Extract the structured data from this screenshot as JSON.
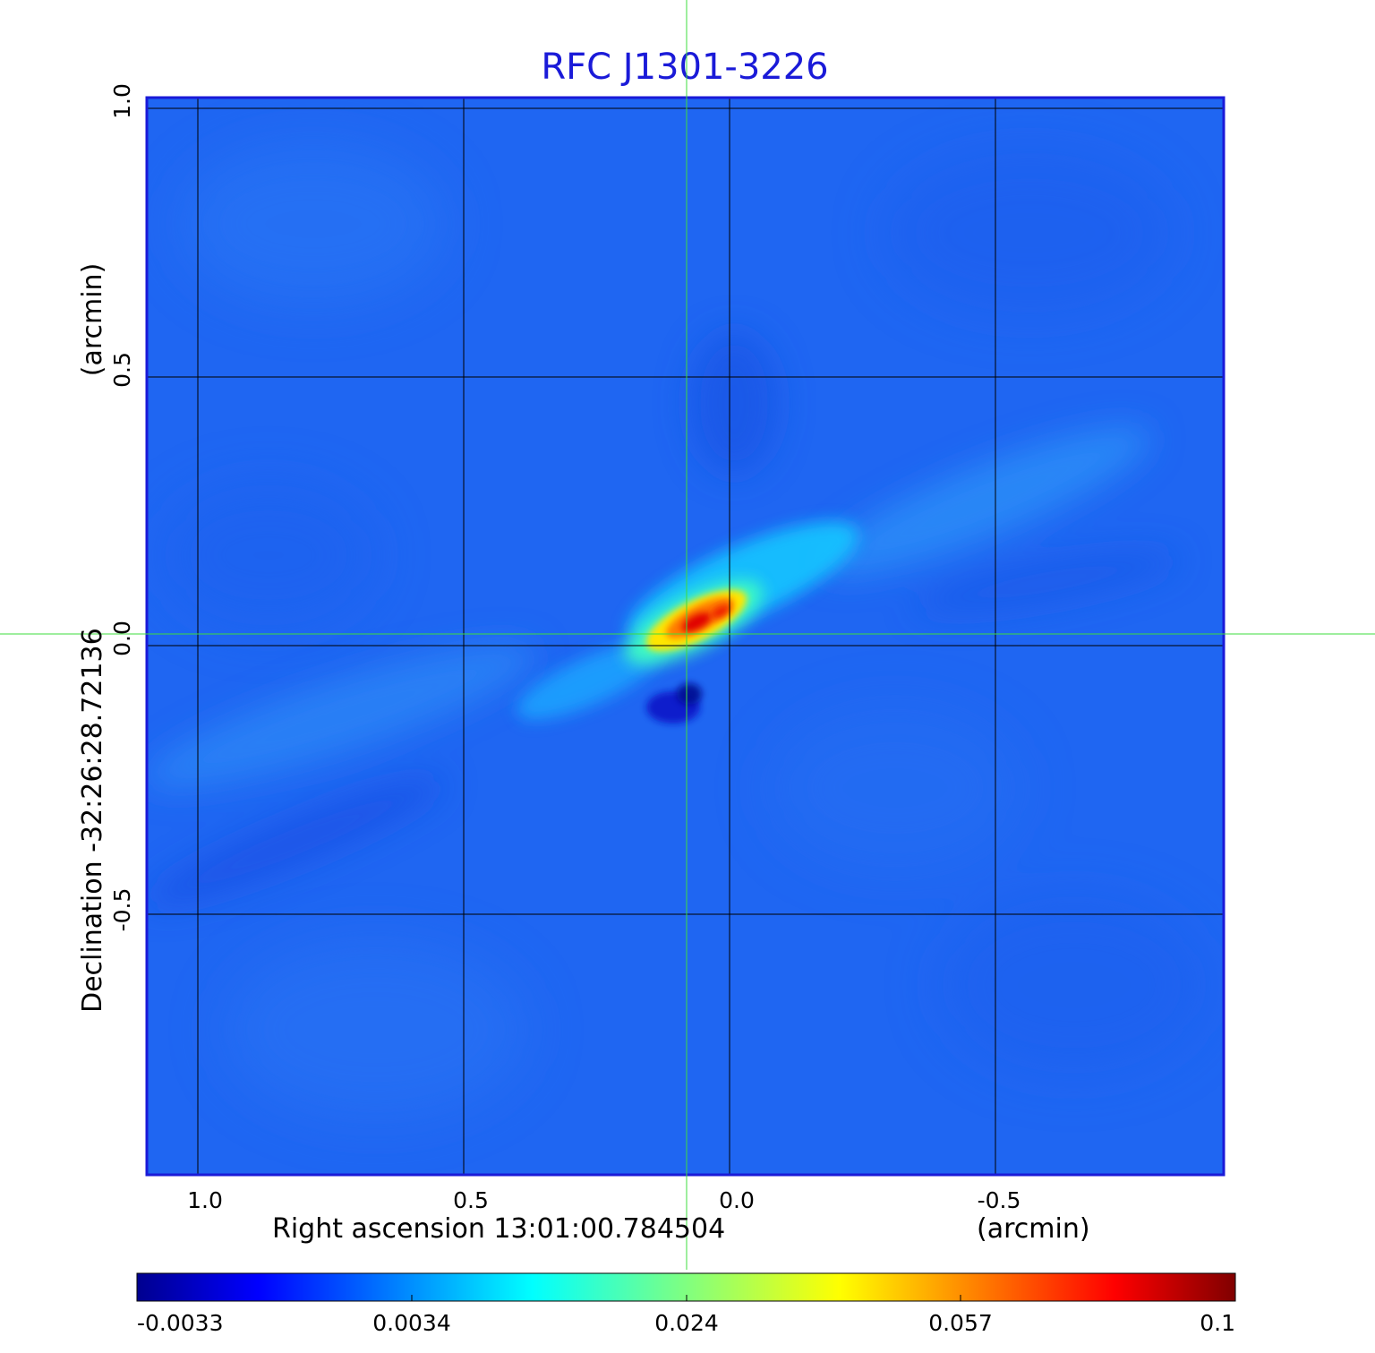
{
  "title": "RFC J1301-3226",
  "x_axis": {
    "label": "Right ascension  13:01:00.784504",
    "unit": "(arcmin)",
    "ticks": [
      {
        "value": 1.0,
        "label": "1.0"
      },
      {
        "value": 0.5,
        "label": "0.5"
      },
      {
        "value": 0.0,
        "label": "0.0"
      },
      {
        "value": -0.5,
        "label": "-0.5"
      }
    ],
    "range": [
      1.1,
      -0.93
    ]
  },
  "y_axis": {
    "label": "Declination  -32:26:28.72136",
    "unit": "(arcmin)",
    "ticks": [
      {
        "value": 1.0,
        "label": "1.0"
      },
      {
        "value": 0.5,
        "label": "0.5"
      },
      {
        "value": 0.0,
        "label": "0.0"
      },
      {
        "value": -0.5,
        "label": "-0.5"
      }
    ],
    "range": [
      -0.98,
      1.02
    ]
  },
  "colorbar": {
    "colormap": "jet",
    "ticks": [
      "-0.0033",
      "0.0034",
      "0.024",
      "0.057",
      "0.1"
    ]
  },
  "image": {
    "source_center": [
      0.08,
      0.03
    ],
    "crosshair_color": "#3ddc3d",
    "grid_color": "#000000",
    "frame_color": "#1a1ad8",
    "background_color": "#1e64f0"
  }
}
